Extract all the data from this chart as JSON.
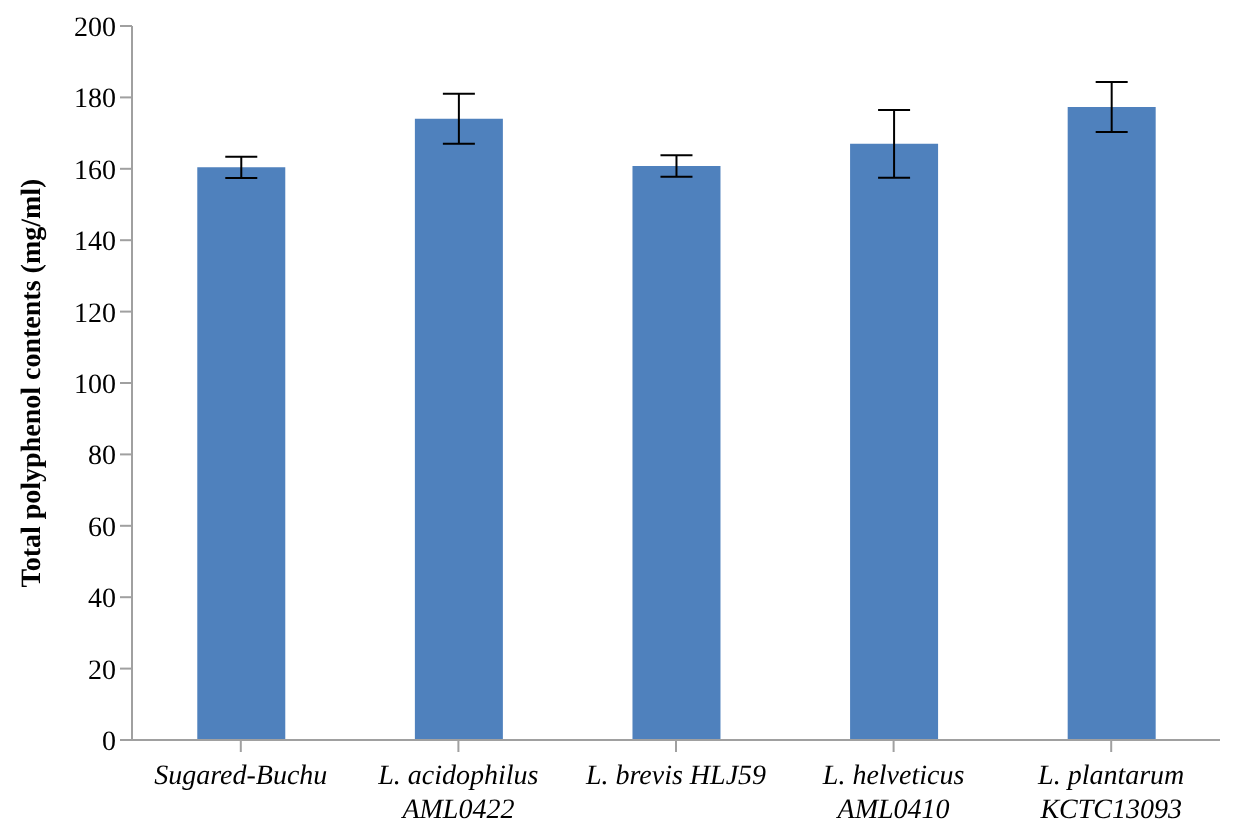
{
  "chart_data": {
    "type": "bar",
    "ylabel": "Total polyphenol contents (mg/ml)",
    "categories": [
      "Sugared-Buchu",
      "L. acidophilus AML0422",
      "L. brevis HLJ59",
      "L. helveticus AML0410",
      "L. plantarum KCTC13093"
    ],
    "values": [
      160.4,
      174,
      160.8,
      167,
      177.3
    ],
    "errors": [
      3,
      7,
      3,
      9.5,
      7
    ],
    "color": "#4f81bd",
    "ylim": [
      0,
      200
    ],
    "yticks": [
      0,
      20,
      40,
      60,
      80,
      100,
      120,
      140,
      160,
      180,
      200
    ],
    "grid": false,
    "legend": false
  }
}
